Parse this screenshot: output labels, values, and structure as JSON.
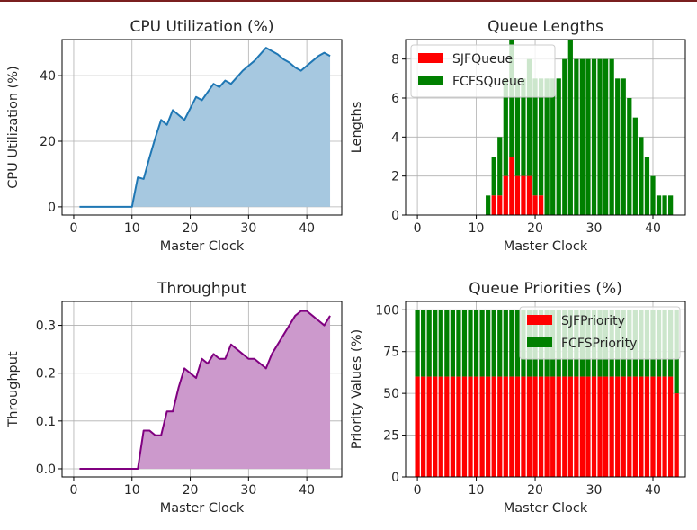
{
  "figure": {
    "top_rule_color": "#7a1f1f"
  },
  "chart_data": [
    {
      "id": "cpu",
      "type": "area",
      "title": "CPU Utilization (%)",
      "xlabel": "Master Clock",
      "ylabel": "CPU Utilization (%)",
      "xlim": [
        -2,
        46
      ],
      "ylim": [
        -2.5,
        51
      ],
      "xticks": [
        0,
        10,
        20,
        30,
        40
      ],
      "yticks": [
        0,
        20,
        40
      ],
      "grid": true,
      "color": "#1f77b4",
      "fill_color": "#a6c8e0",
      "x": [
        1,
        2,
        3,
        4,
        5,
        6,
        7,
        8,
        9,
        10,
        11,
        12,
        13,
        14,
        15,
        16,
        17,
        18,
        19,
        20,
        21,
        22,
        23,
        24,
        25,
        26,
        27,
        28,
        29,
        30,
        31,
        32,
        33,
        34,
        35,
        36,
        37,
        38,
        39,
        40,
        41,
        42,
        43,
        44
      ],
      "y": [
        0,
        0,
        0,
        0,
        0,
        0,
        0,
        0,
        0,
        0,
        9,
        8.5,
        15,
        21,
        26.5,
        25,
        29.5,
        28,
        26.5,
        30,
        33.5,
        32.5,
        35,
        37.5,
        36.5,
        38.5,
        37.5,
        39.5,
        41.5,
        43,
        44.5,
        46.5,
        48.5,
        47.5,
        46.5,
        45,
        44,
        42.5,
        41.5,
        43,
        44.5,
        46,
        47,
        46
      ]
    },
    {
      "id": "queue",
      "type": "bar",
      "title": "Queue Lengths",
      "xlabel": "Master Clock",
      "ylabel": "Lengths",
      "xlim": [
        -2,
        45.5
      ],
      "ylim": [
        0,
        9
      ],
      "xticks": [
        0,
        10,
        20,
        30,
        40
      ],
      "yticks": [
        0,
        2,
        4,
        6,
        8
      ],
      "grid": true,
      "legend": "upper-left",
      "x": [
        12,
        13,
        14,
        15,
        16,
        17,
        18,
        19,
        20,
        21,
        22,
        23,
        24,
        25,
        26,
        27,
        28,
        29,
        30,
        31,
        32,
        33,
        34,
        35,
        36,
        37,
        38,
        39,
        40,
        41,
        42,
        43
      ],
      "series": [
        {
          "name": "SJFQueue",
          "color": "#ff0000",
          "values": [
            0,
            1,
            1,
            2,
            3,
            2,
            2,
            2,
            1,
            1,
            0,
            0,
            0,
            0,
            0,
            0,
            0,
            0,
            0,
            0,
            0,
            0,
            0,
            0,
            0,
            0,
            0,
            0,
            0,
            0,
            0,
            0
          ]
        },
        {
          "name": "FCFSQueue",
          "color": "#008000",
          "values": [
            1,
            2,
            3,
            5,
            6,
            5,
            5,
            6,
            6,
            6,
            7,
            7,
            7,
            8,
            9,
            8,
            8,
            8,
            8,
            8,
            8,
            8,
            7,
            7,
            6,
            5,
            4,
            3,
            2,
            1,
            1,
            1
          ]
        }
      ]
    },
    {
      "id": "throughput",
      "type": "area",
      "title": "Throughput",
      "xlabel": "Master Clock",
      "ylabel": "Throughput",
      "xlim": [
        -2,
        46
      ],
      "ylim": [
        -0.017,
        0.35
      ],
      "xticks": [
        0,
        10,
        20,
        30,
        40
      ],
      "yticks": [
        0.0,
        0.1,
        0.2,
        0.3
      ],
      "ytick_labels": [
        "0.0",
        "0.1",
        "0.2",
        "0.3"
      ],
      "grid": true,
      "color": "#800080",
      "fill_color": "#cc99cc",
      "x": [
        1,
        2,
        3,
        4,
        5,
        6,
        7,
        8,
        9,
        10,
        11,
        12,
        13,
        14,
        15,
        16,
        17,
        18,
        19,
        20,
        21,
        22,
        23,
        24,
        25,
        26,
        27,
        28,
        29,
        30,
        31,
        32,
        33,
        34,
        35,
        36,
        37,
        38,
        39,
        40,
        41,
        42,
        43,
        44
      ],
      "y": [
        0,
        0,
        0,
        0,
        0,
        0,
        0,
        0,
        0,
        0,
        0,
        0.08,
        0.08,
        0.07,
        0.07,
        0.12,
        0.12,
        0.17,
        0.21,
        0.2,
        0.19,
        0.23,
        0.22,
        0.24,
        0.23,
        0.23,
        0.26,
        0.25,
        0.24,
        0.23,
        0.23,
        0.22,
        0.21,
        0.24,
        0.26,
        0.28,
        0.3,
        0.32,
        0.33,
        0.33,
        0.32,
        0.31,
        0.3,
        0.32
      ]
    },
    {
      "id": "priority",
      "type": "bar",
      "title": "Queue Priorities (%)",
      "xlabel": "Master Clock",
      "ylabel": "Priority Values (%)",
      "xlim": [
        -2,
        45.5
      ],
      "ylim": [
        0,
        105
      ],
      "xticks": [
        0,
        10,
        20,
        30,
        40
      ],
      "yticks": [
        0,
        25,
        50,
        75,
        100
      ],
      "grid": true,
      "legend": "upper-right",
      "x": [
        0,
        1,
        2,
        3,
        4,
        5,
        6,
        7,
        8,
        9,
        10,
        11,
        12,
        13,
        14,
        15,
        16,
        17,
        18,
        19,
        20,
        21,
        22,
        23,
        24,
        25,
        26,
        27,
        28,
        29,
        30,
        31,
        32,
        33,
        34,
        35,
        36,
        37,
        38,
        39,
        40,
        41,
        42,
        43,
        44
      ],
      "series": [
        {
          "name": "SJFPriority",
          "color": "#ff0000",
          "values": [
            60,
            60,
            60,
            60,
            60,
            60,
            60,
            60,
            60,
            60,
            60,
            60,
            60,
            60,
            60,
            60,
            60,
            60,
            60,
            60,
            60,
            60,
            60,
            60,
            60,
            60,
            60,
            60,
            60,
            60,
            60,
            60,
            60,
            60,
            60,
            60,
            60,
            60,
            60,
            60,
            60,
            60,
            60,
            60,
            50
          ]
        },
        {
          "name": "FCFSPriority",
          "color": "#008000",
          "values": [
            40,
            40,
            40,
            40,
            40,
            40,
            40,
            40,
            40,
            40,
            40,
            40,
            40,
            40,
            40,
            40,
            40,
            40,
            40,
            40,
            40,
            40,
            40,
            40,
            40,
            40,
            40,
            40,
            40,
            40,
            40,
            40,
            40,
            40,
            40,
            40,
            40,
            40,
            40,
            40,
            40,
            40,
            40,
            40,
            50
          ]
        }
      ]
    }
  ]
}
